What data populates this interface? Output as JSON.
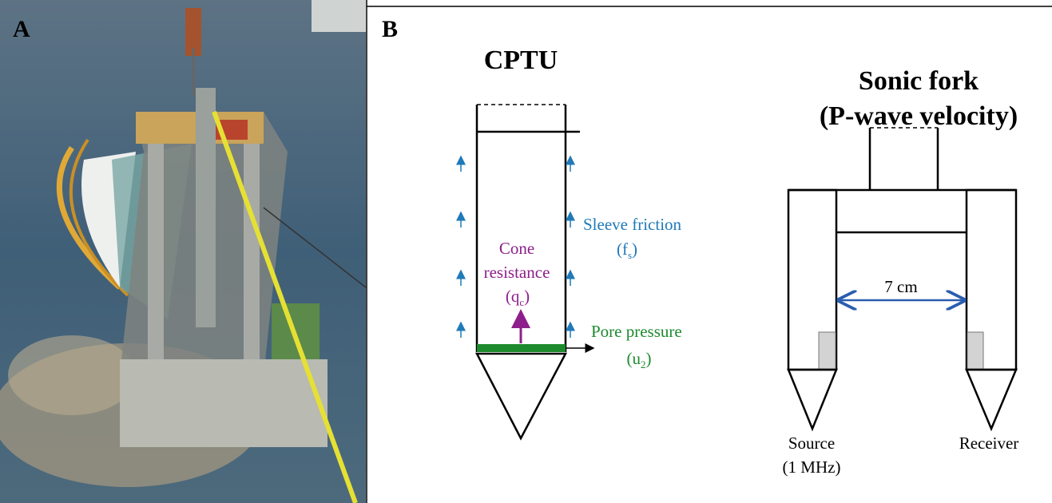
{
  "panels": {
    "a": {
      "label": "A"
    },
    "b": {
      "label": "B",
      "cptu": {
        "title": "CPTU",
        "cone_resistance": {
          "line1": "Cone",
          "line2": "resistance",
          "symbol": "(q",
          "subscript": "c",
          "close": ")"
        },
        "sleeve_friction": {
          "label": "Sleeve friction",
          "symbol": "(f",
          "subscript": "s",
          "close": ")"
        },
        "pore_pressure": {
          "label": "Pore pressure",
          "symbol": "(u",
          "subscript": "2",
          "close": ")"
        }
      },
      "sonic_fork": {
        "title_line1": "Sonic fork",
        "title_line2": "(P-wave velocity)",
        "distance": "7 cm",
        "source": "Source",
        "source_frequency": "(1 MHz)",
        "receiver": "Receiver"
      }
    }
  }
}
